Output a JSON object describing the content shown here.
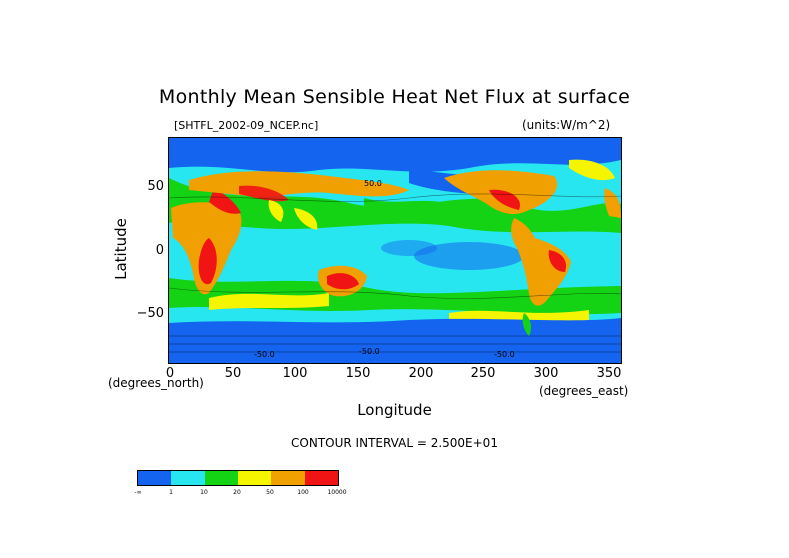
{
  "title": "Monthly Mean Sensible Heat Net Flux at surface",
  "file_label": "[SHTFL_2002-09_NCEP.nc]",
  "units_label": "(units:W/m^2)",
  "y_axis": {
    "label": "Latitude",
    "ticks": [
      "50",
      "0",
      "−50"
    ]
  },
  "x_axis": {
    "label": "Longitude",
    "ticks": [
      "0",
      "50",
      "100",
      "150",
      "200",
      "250",
      "300",
      "350"
    ],
    "unit_left": "(degrees_north)",
    "unit_right": "(degrees_east)"
  },
  "contour_interval": "CONTOUR INTERVAL = 2.500E+01",
  "colorbar": {
    "colors": [
      "#1464f0",
      "#28e6f0",
      "#14d214",
      "#f5f500",
      "#f0a000",
      "#f01414"
    ],
    "labels": [
      "-∞",
      "1",
      "10",
      "20",
      "50",
      "100",
      "10000"
    ]
  },
  "map_contour_labels": [
    "50.0",
    "-50.0",
    "-50.0",
    "-50.0"
  ],
  "colors": {
    "ocean_base": "#28e6f0",
    "polar": "#1464f0",
    "green": "#14d214",
    "yellow": "#f5f500",
    "orange": "#f0a000",
    "red": "#f01414"
  }
}
